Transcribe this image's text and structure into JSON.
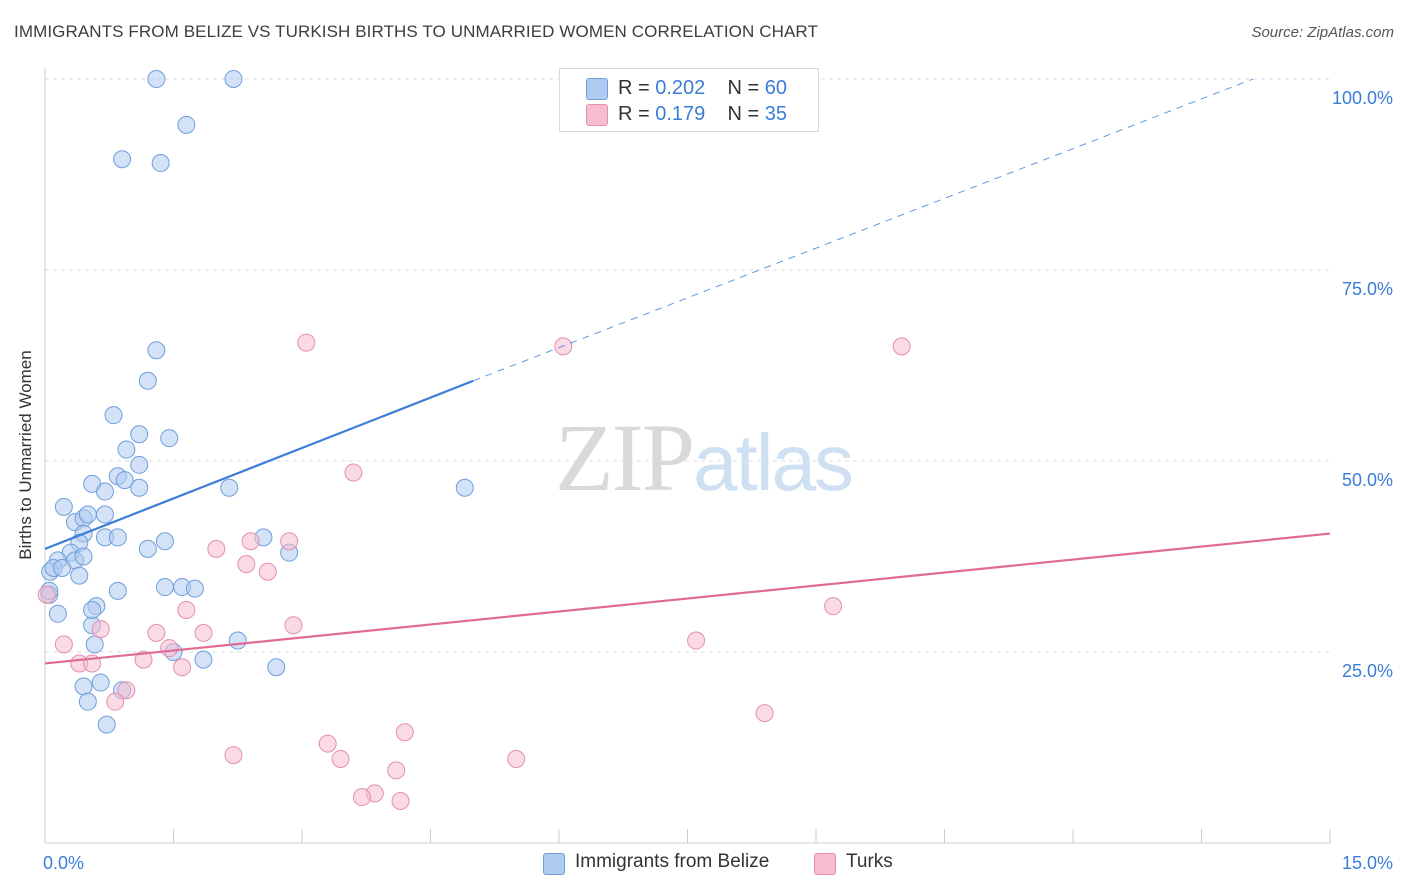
{
  "title": "IMMIGRANTS FROM BELIZE VS TURKISH BIRTHS TO UNMARRIED WOMEN CORRELATION CHART",
  "source": "Source: ZipAtlas.com",
  "watermark": {
    "zip": "ZIP",
    "atlas": "atlas"
  },
  "colors": {
    "blue": "#3b7dd8",
    "blue_fill": "#aecbf0",
    "pink": "#e06a96",
    "pink_fill": "#f6bccf",
    "grid": "#dddddd"
  },
  "legend_top": [
    {
      "r_label": "R =",
      "r_value": "0.202",
      "n_label": "N =",
      "n_value": "60"
    },
    {
      "r_label": "R =",
      "r_value": "0.179",
      "n_label": "N =",
      "n_value": "35"
    }
  ],
  "chart_data": {
    "type": "scatter",
    "xlabel": "",
    "ylabel": "Births to Unmarried Women",
    "xlim": [
      0,
      15
    ],
    "ylim": [
      0,
      100
    ],
    "x_tick_labels": [
      "0.0%",
      "15.0%"
    ],
    "y_tick_labels": [
      "25.0%",
      "50.0%",
      "75.0%",
      "100.0%"
    ],
    "y_ticks": [
      25,
      50,
      75,
      100
    ],
    "legend": [
      "Immigrants from Belize",
      "Turks"
    ],
    "series": [
      {
        "name": "Immigrants from Belize",
        "r": 0.202,
        "n": 60,
        "trend": {
          "x0": 0,
          "y0": 38.5,
          "x1": 5.0,
          "y1": 60.5,
          "dashed_to_x": 14.1,
          "dashed_to_y": 100
        },
        "points": [
          [
            1.3,
            100
          ],
          [
            2.2,
            100
          ],
          [
            1.65,
            94
          ],
          [
            0.9,
            89.5
          ],
          [
            1.35,
            89
          ],
          [
            1.3,
            64.5
          ],
          [
            1.2,
            60.5
          ],
          [
            0.8,
            56
          ],
          [
            0.95,
            51.5
          ],
          [
            1.1,
            53.5
          ],
          [
            1.45,
            53
          ],
          [
            1.1,
            49.5
          ],
          [
            0.85,
            48
          ],
          [
            0.93,
            47.5
          ],
          [
            0.55,
            47
          ],
          [
            0.7,
            46
          ],
          [
            1.1,
            46.5
          ],
          [
            2.15,
            46.5
          ],
          [
            4.9,
            46.5
          ],
          [
            0.22,
            44
          ],
          [
            0.7,
            43
          ],
          [
            0.35,
            42
          ],
          [
            0.45,
            42.5
          ],
          [
            0.5,
            43
          ],
          [
            0.45,
            40.5
          ],
          [
            0.7,
            40
          ],
          [
            0.85,
            40
          ],
          [
            2.55,
            40
          ],
          [
            1.4,
            39.5
          ],
          [
            0.4,
            39.3
          ],
          [
            1.2,
            38.5
          ],
          [
            0.3,
            38
          ],
          [
            0.15,
            37
          ],
          [
            0.35,
            37
          ],
          [
            0.45,
            37.5
          ],
          [
            2.85,
            38
          ],
          [
            0.06,
            35.5
          ],
          [
            0.1,
            36
          ],
          [
            0.2,
            36
          ],
          [
            0.4,
            35
          ],
          [
            1.6,
            33.5
          ],
          [
            1.4,
            33.5
          ],
          [
            1.75,
            33.3
          ],
          [
            0.85,
            33
          ],
          [
            0.05,
            32.5
          ],
          [
            0.15,
            30
          ],
          [
            0.6,
            31
          ],
          [
            0.55,
            28.5
          ],
          [
            0.58,
            26
          ],
          [
            2.25,
            26.5
          ],
          [
            1.85,
            24
          ],
          [
            2.7,
            23
          ],
          [
            0.45,
            20.5
          ],
          [
            0.65,
            21
          ],
          [
            0.9,
            20
          ],
          [
            0.5,
            18.5
          ],
          [
            0.72,
            15.5
          ],
          [
            0.05,
            33
          ],
          [
            0.55,
            30.5
          ],
          [
            1.5,
            25
          ]
        ]
      },
      {
        "name": "Turks",
        "r": 0.179,
        "n": 35,
        "trend": {
          "x0": 0,
          "y0": 23.5,
          "x1": 15,
          "y1": 40.5
        },
        "points": [
          [
            3.05,
            65.5
          ],
          [
            6.05,
            65
          ],
          [
            10.0,
            65
          ],
          [
            3.6,
            48.5
          ],
          [
            2.4,
            39.5
          ],
          [
            2.85,
            39.5
          ],
          [
            2.0,
            38.5
          ],
          [
            2.35,
            36.5
          ],
          [
            2.6,
            35.5
          ],
          [
            0.02,
            32.5
          ],
          [
            1.65,
            30.5
          ],
          [
            9.2,
            31
          ],
          [
            0.65,
            28
          ],
          [
            1.3,
            27.5
          ],
          [
            1.85,
            27.5
          ],
          [
            2.9,
            28.5
          ],
          [
            0.22,
            26
          ],
          [
            7.6,
            26.5
          ],
          [
            1.45,
            25.5
          ],
          [
            0.4,
            23.5
          ],
          [
            0.55,
            23.5
          ],
          [
            1.15,
            24
          ],
          [
            1.6,
            23
          ],
          [
            0.95,
            20
          ],
          [
            0.82,
            18.5
          ],
          [
            8.4,
            17
          ],
          [
            4.2,
            14.5
          ],
          [
            3.3,
            13
          ],
          [
            2.2,
            11.5
          ],
          [
            3.45,
            11
          ],
          [
            5.5,
            11
          ],
          [
            4.1,
            9.5
          ],
          [
            3.85,
            6.5
          ],
          [
            3.7,
            6
          ],
          [
            4.15,
            5.5
          ]
        ]
      }
    ]
  }
}
